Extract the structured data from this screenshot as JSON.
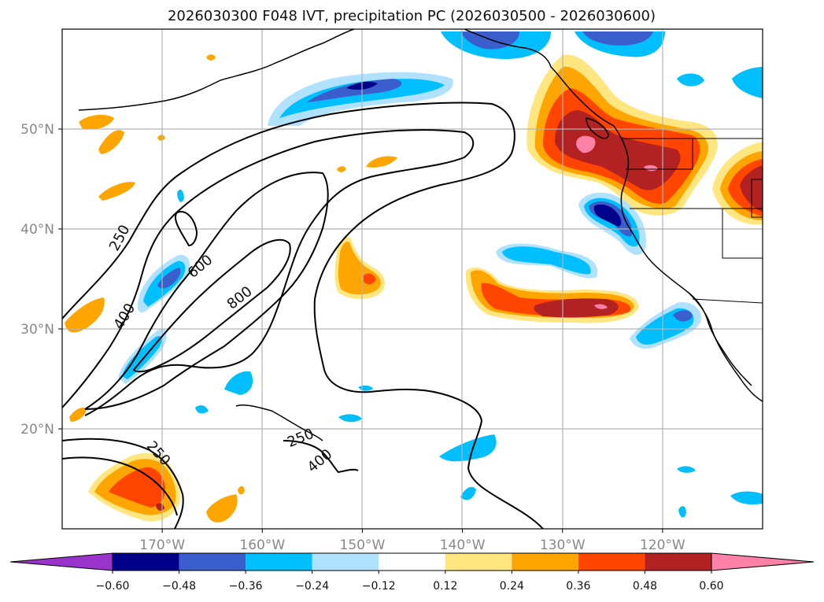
{
  "chart_data": {
    "type": "map-contour",
    "title": "2026030300 F048 IVT, precipitation PC (2026030500 - 2026030600)",
    "lon_range": [
      -180,
      -110
    ],
    "lat_range": [
      10,
      60
    ],
    "x_ticks": [
      {
        "value": -170,
        "label": "170°W"
      },
      {
        "value": -160,
        "label": "160°W"
      },
      {
        "value": -150,
        "label": "150°W"
      },
      {
        "value": -140,
        "label": "140°W"
      },
      {
        "value": -130,
        "label": "130°W"
      },
      {
        "value": -120,
        "label": "120°W"
      }
    ],
    "y_ticks": [
      {
        "value": 20,
        "label": "20°N"
      },
      {
        "value": 30,
        "label": "30°N"
      },
      {
        "value": 40,
        "label": "40°N"
      },
      {
        "value": 50,
        "label": "50°N"
      }
    ],
    "grid": true,
    "colorbar": {
      "orientation": "horizontal",
      "extend": "both",
      "levels": [
        -0.6,
        -0.48,
        -0.36,
        -0.24,
        -0.12,
        0.12,
        0.24,
        0.36,
        0.48,
        0.6
      ],
      "tick_labels": [
        "−0.60",
        "−0.48",
        "−0.36",
        "−0.24",
        "−0.12",
        "0.12",
        "0.24",
        "0.36",
        "0.48",
        "0.60"
      ],
      "colors": [
        "#9933cc",
        "#00008b",
        "#3a5fcd",
        "#00bfff",
        "#b0e2ff",
        "#ffffff",
        "#ffe680",
        "#ffa500",
        "#ff4500",
        "#b22222",
        "#ff80a8"
      ]
    },
    "ivt_contour_labels": [
      {
        "text": "250",
        "lon": -174.2,
        "lat": 38.8
      },
      {
        "text": "400",
        "lon": -175.8,
        "lat": 31.3
      },
      {
        "text": "600",
        "lon": -166.0,
        "lat": 35.2
      },
      {
        "text": "800",
        "lon": -158.0,
        "lat": 31.5
      },
      {
        "text": "250",
        "lon": -174.2,
        "lat": 16.0
      },
      {
        "text": "250",
        "lon": -155.8,
        "lat": 19.5
      },
      {
        "text": "400",
        "lon": -154.0,
        "lat": 16.0
      }
    ]
  }
}
